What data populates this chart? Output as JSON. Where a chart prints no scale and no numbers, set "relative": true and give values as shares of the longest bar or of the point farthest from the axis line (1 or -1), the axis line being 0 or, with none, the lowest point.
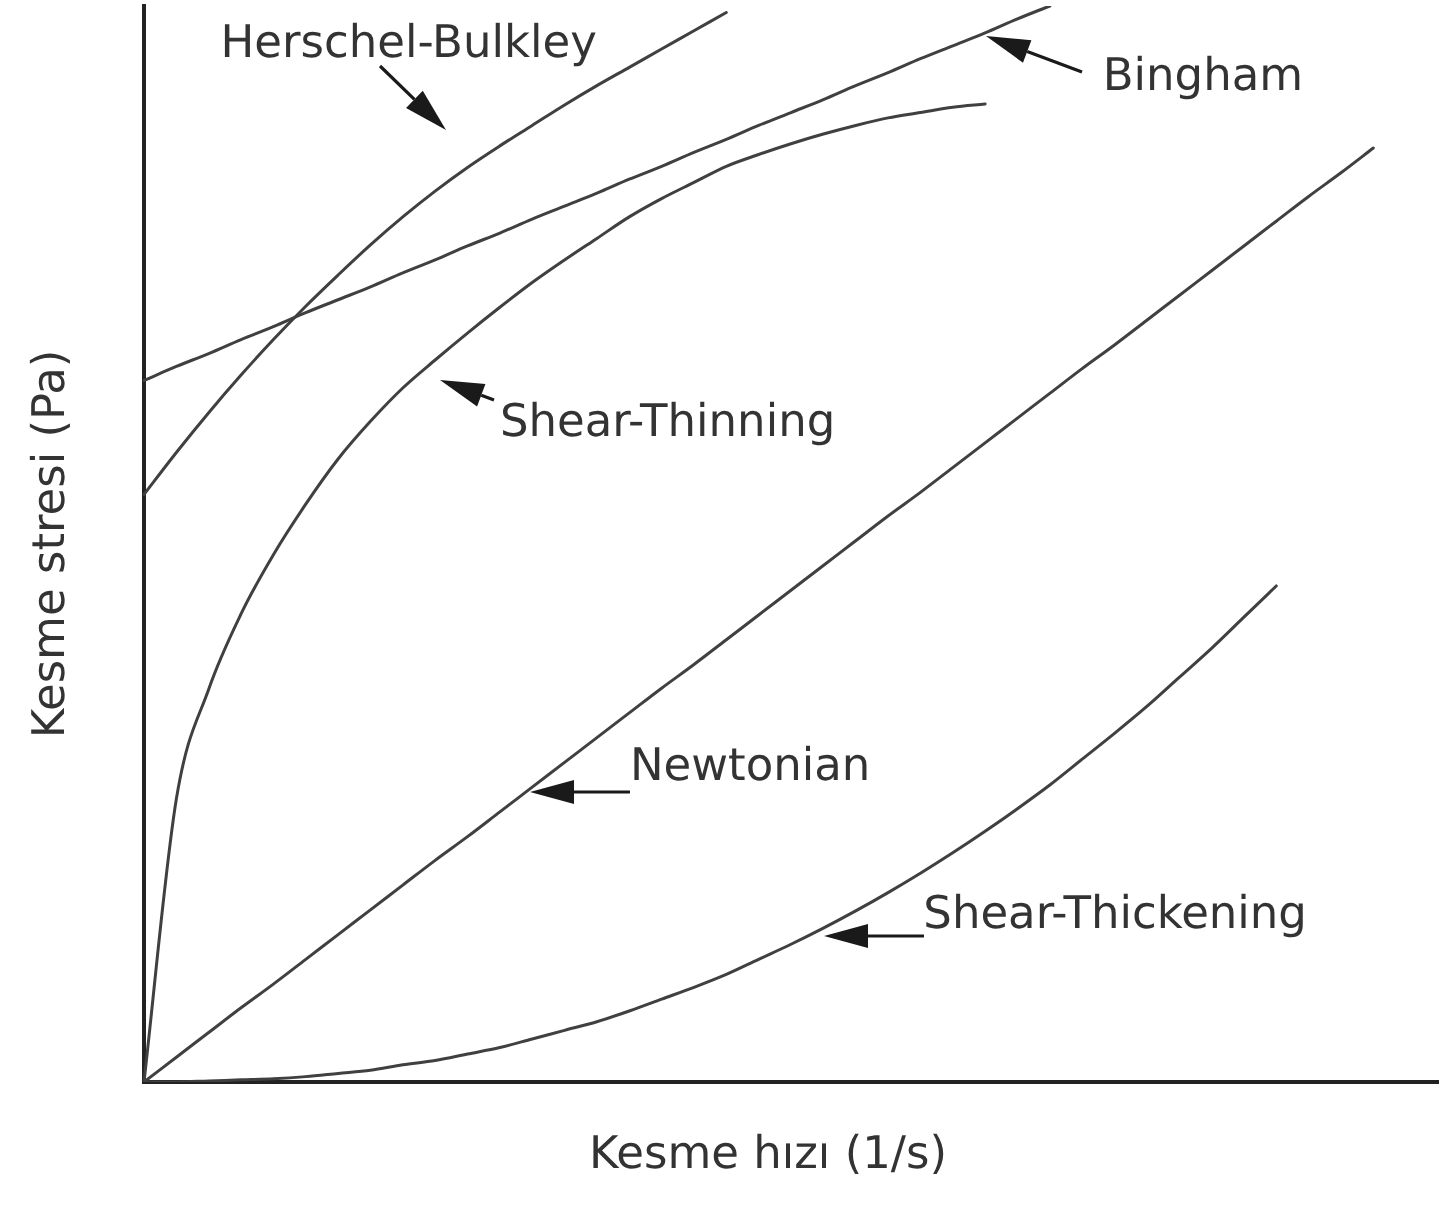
{
  "chart_data": {
    "type": "line",
    "xlabel": "Kesme hızı (1/s)",
    "ylabel": "Kesme stresi (Pa)",
    "relative": true,
    "tick_labels": false,
    "marker": "none",
    "categories": [
      null,
      null,
      null,
      null,
      null,
      null,
      null,
      null,
      null,
      null,
      null,
      null,
      null,
      null,
      null,
      null,
      null,
      null,
      null,
      null,
      null,
      null,
      null,
      null,
      null,
      null,
      null,
      null,
      null,
      null,
      null,
      null,
      null,
      null,
      null,
      null,
      null,
      null,
      null,
      null,
      null
    ],
    "series": [
      {
        "name": "Herschel-Bulkley",
        "color": "#404040",
        "values": [
          0.546,
          0.585,
          0.622,
          0.657,
          0.69,
          0.721,
          0.75,
          0.778,
          0.804,
          0.828,
          0.85,
          0.87,
          0.889,
          0.908,
          0.926,
          0.943,
          0.96,
          0.977,
          0.994,
          null,
          null,
          null,
          null,
          null,
          null,
          null,
          null,
          null,
          null,
          null,
          null,
          null,
          null,
          null,
          null,
          null,
          null,
          null,
          null,
          null,
          null
        ]
      },
      {
        "name": "Bingham",
        "color": "#404040",
        "values": [
          0.652,
          0.665,
          0.677,
          0.69,
          0.702,
          0.715,
          0.727,
          0.739,
          0.752,
          0.764,
          0.777,
          0.789,
          0.802,
          0.814,
          0.826,
          0.839,
          0.851,
          0.864,
          0.876,
          0.889,
          0.901,
          0.913,
          0.926,
          0.938,
          0.951,
          0.963,
          0.975,
          0.988,
          1,
          null,
          null,
          null,
          null,
          null,
          null,
          null,
          null,
          null,
          null,
          null,
          null
        ]
      },
      {
        "name": "Shear-Thinning",
        "color": "#404040",
        "values": [
          0,
          0.263,
          0.365,
          0.435,
          0.49,
          0.537,
          0.579,
          0.614,
          0.645,
          0.671,
          0.696,
          0.72,
          0.743,
          0.764,
          0.784,
          0.804,
          0.821,
          0.836,
          0.851,
          0.862,
          0.872,
          0.881,
          0.889,
          0.896,
          0.901,
          0.906,
          0.909,
          null,
          null,
          null,
          null,
          null,
          null,
          null,
          null,
          null,
          null,
          null,
          null,
          null,
          null
        ]
      },
      {
        "name": "Newtonian",
        "color": "#404040",
        "values": [
          0,
          0.023,
          0.046,
          0.069,
          0.091,
          0.114,
          0.137,
          0.16,
          0.183,
          0.206,
          0.228,
          0.251,
          0.274,
          0.297,
          0.32,
          0.343,
          0.366,
          0.388,
          0.411,
          0.434,
          0.457,
          0.48,
          0.503,
          0.526,
          0.548,
          0.571,
          0.594,
          0.617,
          0.64,
          0.663,
          0.685,
          0.708,
          0.731,
          0.754,
          0.777,
          0.8,
          0.823,
          0.845,
          0.868,
          null,
          null
        ]
      },
      {
        "name": "Shear-Thickening",
        "color": "#404040",
        "values": [
          0,
          0,
          0.001,
          0.002,
          0.003,
          0.005,
          0.008,
          0.011,
          0.016,
          0.02,
          0.026,
          0.032,
          0.04,
          0.048,
          0.056,
          0.066,
          0.077,
          0.088,
          0.1,
          0.114,
          0.128,
          0.143,
          0.159,
          0.176,
          0.194,
          0.213,
          0.233,
          0.254,
          0.276,
          0.3,
          0.324,
          0.349,
          0.376,
          0.403,
          0.432,
          0.461,
          null,
          null,
          null,
          null,
          null
        ]
      }
    ]
  }
}
